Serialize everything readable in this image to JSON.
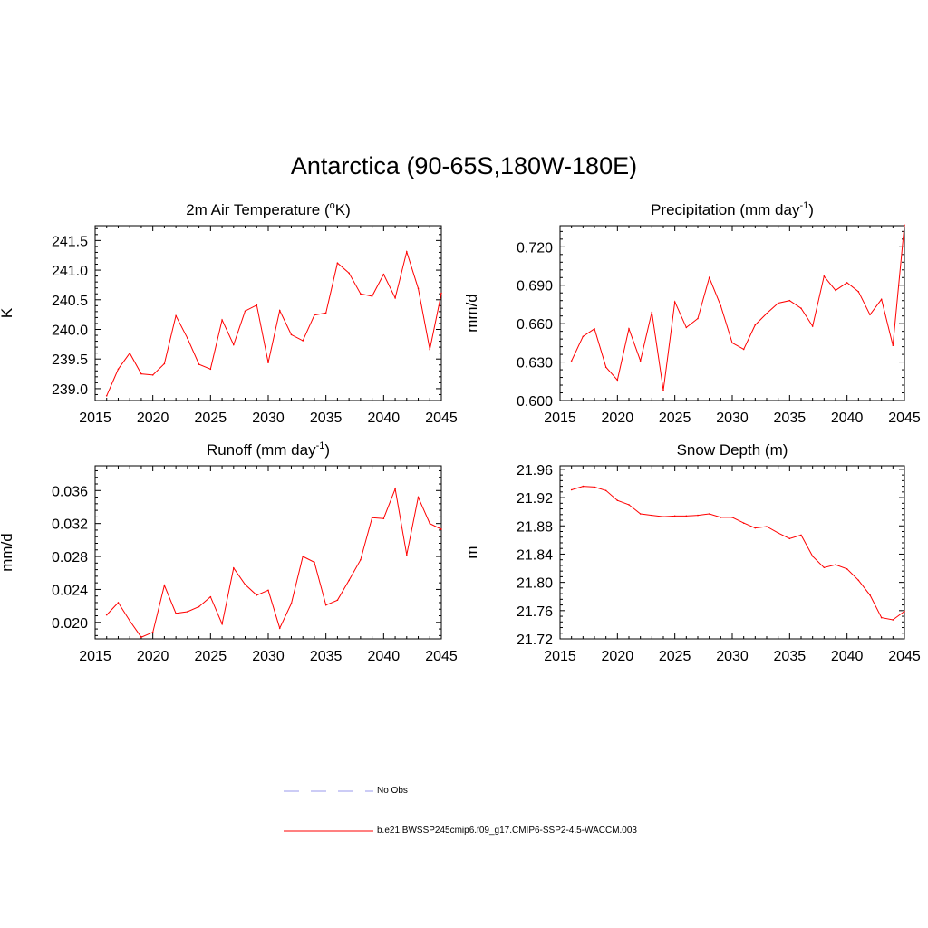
{
  "page": {
    "title": "Antarctica (90-65S,180W-180E)"
  },
  "colors": {
    "series": "#ff0000",
    "obs": "#9999ee",
    "axis": "#000000"
  },
  "legend": {
    "items": [
      {
        "label": "No Obs",
        "style": "dashed",
        "color": "#9999ee"
      },
      {
        "label": "b.e21.BWSSP245cmip6.f09_g17.CMIP6-SSP2-4.5-WACCM.003",
        "style": "solid",
        "color": "#ff0000"
      }
    ]
  },
  "chart_data": [
    {
      "type": "line",
      "title": "2m Air Temperature (",
      "title_sup": "o",
      "title_after": "K)",
      "xlabel": "",
      "ylabel": "K",
      "xlim": [
        2015,
        2045
      ],
      "ylim": [
        238.8,
        241.75
      ],
      "xticks": [
        2015,
        2020,
        2025,
        2030,
        2035,
        2040,
        2045
      ],
      "xtick_labels": [
        "2015",
        "2020",
        "2025",
        "2030",
        "2035",
        "2040",
        "2045"
      ],
      "yticks": [
        239.0,
        239.5,
        240.0,
        240.5,
        241.0,
        241.5
      ],
      "ytick_labels": [
        "239.0",
        "239.5",
        "240.0",
        "240.5",
        "241.0",
        "241.5"
      ],
      "series": [
        {
          "name": "b.e21.BWSSP245cmip6.f09_g17.CMIP6-SSP2-4.5-WACCM.003",
          "x": [
            2016,
            2017,
            2018,
            2019,
            2020,
            2021,
            2022,
            2023,
            2024,
            2025,
            2026,
            2027,
            2028,
            2029,
            2030,
            2031,
            2032,
            2033,
            2034,
            2035,
            2036,
            2037,
            2038,
            2039,
            2040,
            2041,
            2042,
            2043,
            2044,
            2045
          ],
          "values": [
            238.88,
            239.33,
            239.6,
            239.25,
            239.23,
            239.42,
            240.23,
            239.85,
            239.41,
            239.33,
            240.16,
            239.74,
            240.31,
            240.41,
            239.44,
            240.32,
            239.91,
            239.81,
            240.24,
            240.28,
            241.12,
            240.95,
            240.6,
            240.56,
            240.93,
            240.53,
            241.31,
            240.69,
            239.66,
            240.61
          ]
        }
      ]
    },
    {
      "type": "line",
      "title": "Precipitation (mm day",
      "title_sup": "-1",
      "title_after": ")",
      "xlabel": "",
      "ylabel": "mm/d",
      "xlim": [
        2015,
        2045
      ],
      "ylim": [
        0.6,
        0.7365
      ],
      "xticks": [
        2015,
        2020,
        2025,
        2030,
        2035,
        2040,
        2045
      ],
      "xtick_labels": [
        "2015",
        "2020",
        "2025",
        "2030",
        "2035",
        "2040",
        "2045"
      ],
      "yticks": [
        0.6,
        0.63,
        0.66,
        0.69,
        0.72
      ],
      "ytick_labels": [
        "0.600",
        "0.630",
        "0.660",
        "0.690",
        "0.720"
      ],
      "series": [
        {
          "name": "b.e21.BWSSP245cmip6.f09_g17.CMIP6-SSP2-4.5-WACCM.003",
          "x": [
            2016,
            2017,
            2018,
            2019,
            2020,
            2021,
            2022,
            2023,
            2024,
            2025,
            2026,
            2027,
            2028,
            2029,
            2030,
            2031,
            2032,
            2033,
            2034,
            2035,
            2036,
            2037,
            2038,
            2039,
            2040,
            2041,
            2042,
            2043,
            2044,
            2045
          ],
          "values": [
            0.631,
            0.65,
            0.656,
            0.626,
            0.616,
            0.656,
            0.631,
            0.669,
            0.608,
            0.677,
            0.657,
            0.664,
            0.696,
            0.674,
            0.645,
            0.64,
            0.659,
            0.668,
            0.676,
            0.678,
            0.672,
            0.658,
            0.697,
            0.686,
            0.692,
            0.685,
            0.667,
            0.679,
            0.643,
            0.737
          ]
        }
      ]
    },
    {
      "type": "line",
      "title": "Runoff (mm day",
      "title_sup": "-1",
      "title_after": ")",
      "xlabel": "",
      "ylabel": "mm/d",
      "xlim": [
        2015,
        2045
      ],
      "ylim": [
        0.018,
        0.039
      ],
      "xticks": [
        2015,
        2020,
        2025,
        2030,
        2035,
        2040,
        2045
      ],
      "xtick_labels": [
        "2015",
        "2020",
        "2025",
        "2030",
        "2035",
        "2040",
        "2045"
      ],
      "yticks": [
        0.02,
        0.024,
        0.028,
        0.032,
        0.036
      ],
      "ytick_labels": [
        "0.020",
        "0.024",
        "0.028",
        "0.032",
        "0.036"
      ],
      "series": [
        {
          "name": "b.e21.BWSSP245cmip6.f09_g17.CMIP6-SSP2-4.5-WACCM.003",
          "x": [
            2016,
            2017,
            2018,
            2019,
            2020,
            2021,
            2022,
            2023,
            2024,
            2025,
            2026,
            2027,
            2028,
            2029,
            2030,
            2031,
            2032,
            2033,
            2034,
            2035,
            2036,
            2037,
            2038,
            2039,
            2040,
            2041,
            2042,
            2043,
            2044,
            2045
          ],
          "values": [
            0.0209,
            0.0224,
            0.0202,
            0.0182,
            0.0188,
            0.0245,
            0.0211,
            0.0213,
            0.0219,
            0.0231,
            0.0198,
            0.0266,
            0.0246,
            0.0233,
            0.0239,
            0.0193,
            0.0223,
            0.028,
            0.0273,
            0.0221,
            0.0227,
            0.0251,
            0.0276,
            0.0327,
            0.0326,
            0.0362,
            0.0282,
            0.0352,
            0.032,
            0.0313
          ]
        }
      ]
    },
    {
      "type": "line",
      "title": "Snow Depth (m)",
      "title_sup": "",
      "title_after": "",
      "xlabel": "",
      "ylabel": "m",
      "xlim": [
        2015,
        2045
      ],
      "ylim": [
        21.72,
        21.965
      ],
      "xticks": [
        2015,
        2020,
        2025,
        2030,
        2035,
        2040,
        2045
      ],
      "xtick_labels": [
        "2015",
        "2020",
        "2025",
        "2030",
        "2035",
        "2040",
        "2045"
      ],
      "yticks": [
        21.72,
        21.76,
        21.8,
        21.84,
        21.88,
        21.92,
        21.96
      ],
      "ytick_labels": [
        "21.72",
        "21.76",
        "21.80",
        "21.84",
        "21.88",
        "21.92",
        "21.96"
      ],
      "series": [
        {
          "name": "b.e21.BWSSP245cmip6.f09_g17.CMIP6-SSP2-4.5-WACCM.003",
          "x": [
            2016,
            2017,
            2018,
            2019,
            2020,
            2021,
            2022,
            2023,
            2024,
            2025,
            2026,
            2027,
            2028,
            2029,
            2030,
            2031,
            2032,
            2033,
            2034,
            2035,
            2036,
            2037,
            2038,
            2039,
            2040,
            2041,
            2042,
            2043,
            2044,
            2045
          ],
          "values": [
            21.931,
            21.936,
            21.935,
            21.93,
            21.916,
            21.91,
            21.897,
            21.895,
            21.893,
            21.894,
            21.894,
            21.895,
            21.897,
            21.892,
            21.892,
            21.884,
            21.877,
            21.879,
            21.87,
            21.862,
            21.867,
            21.837,
            21.821,
            21.825,
            21.819,
            21.803,
            21.782,
            21.75,
            21.747,
            21.759
          ]
        }
      ]
    }
  ]
}
